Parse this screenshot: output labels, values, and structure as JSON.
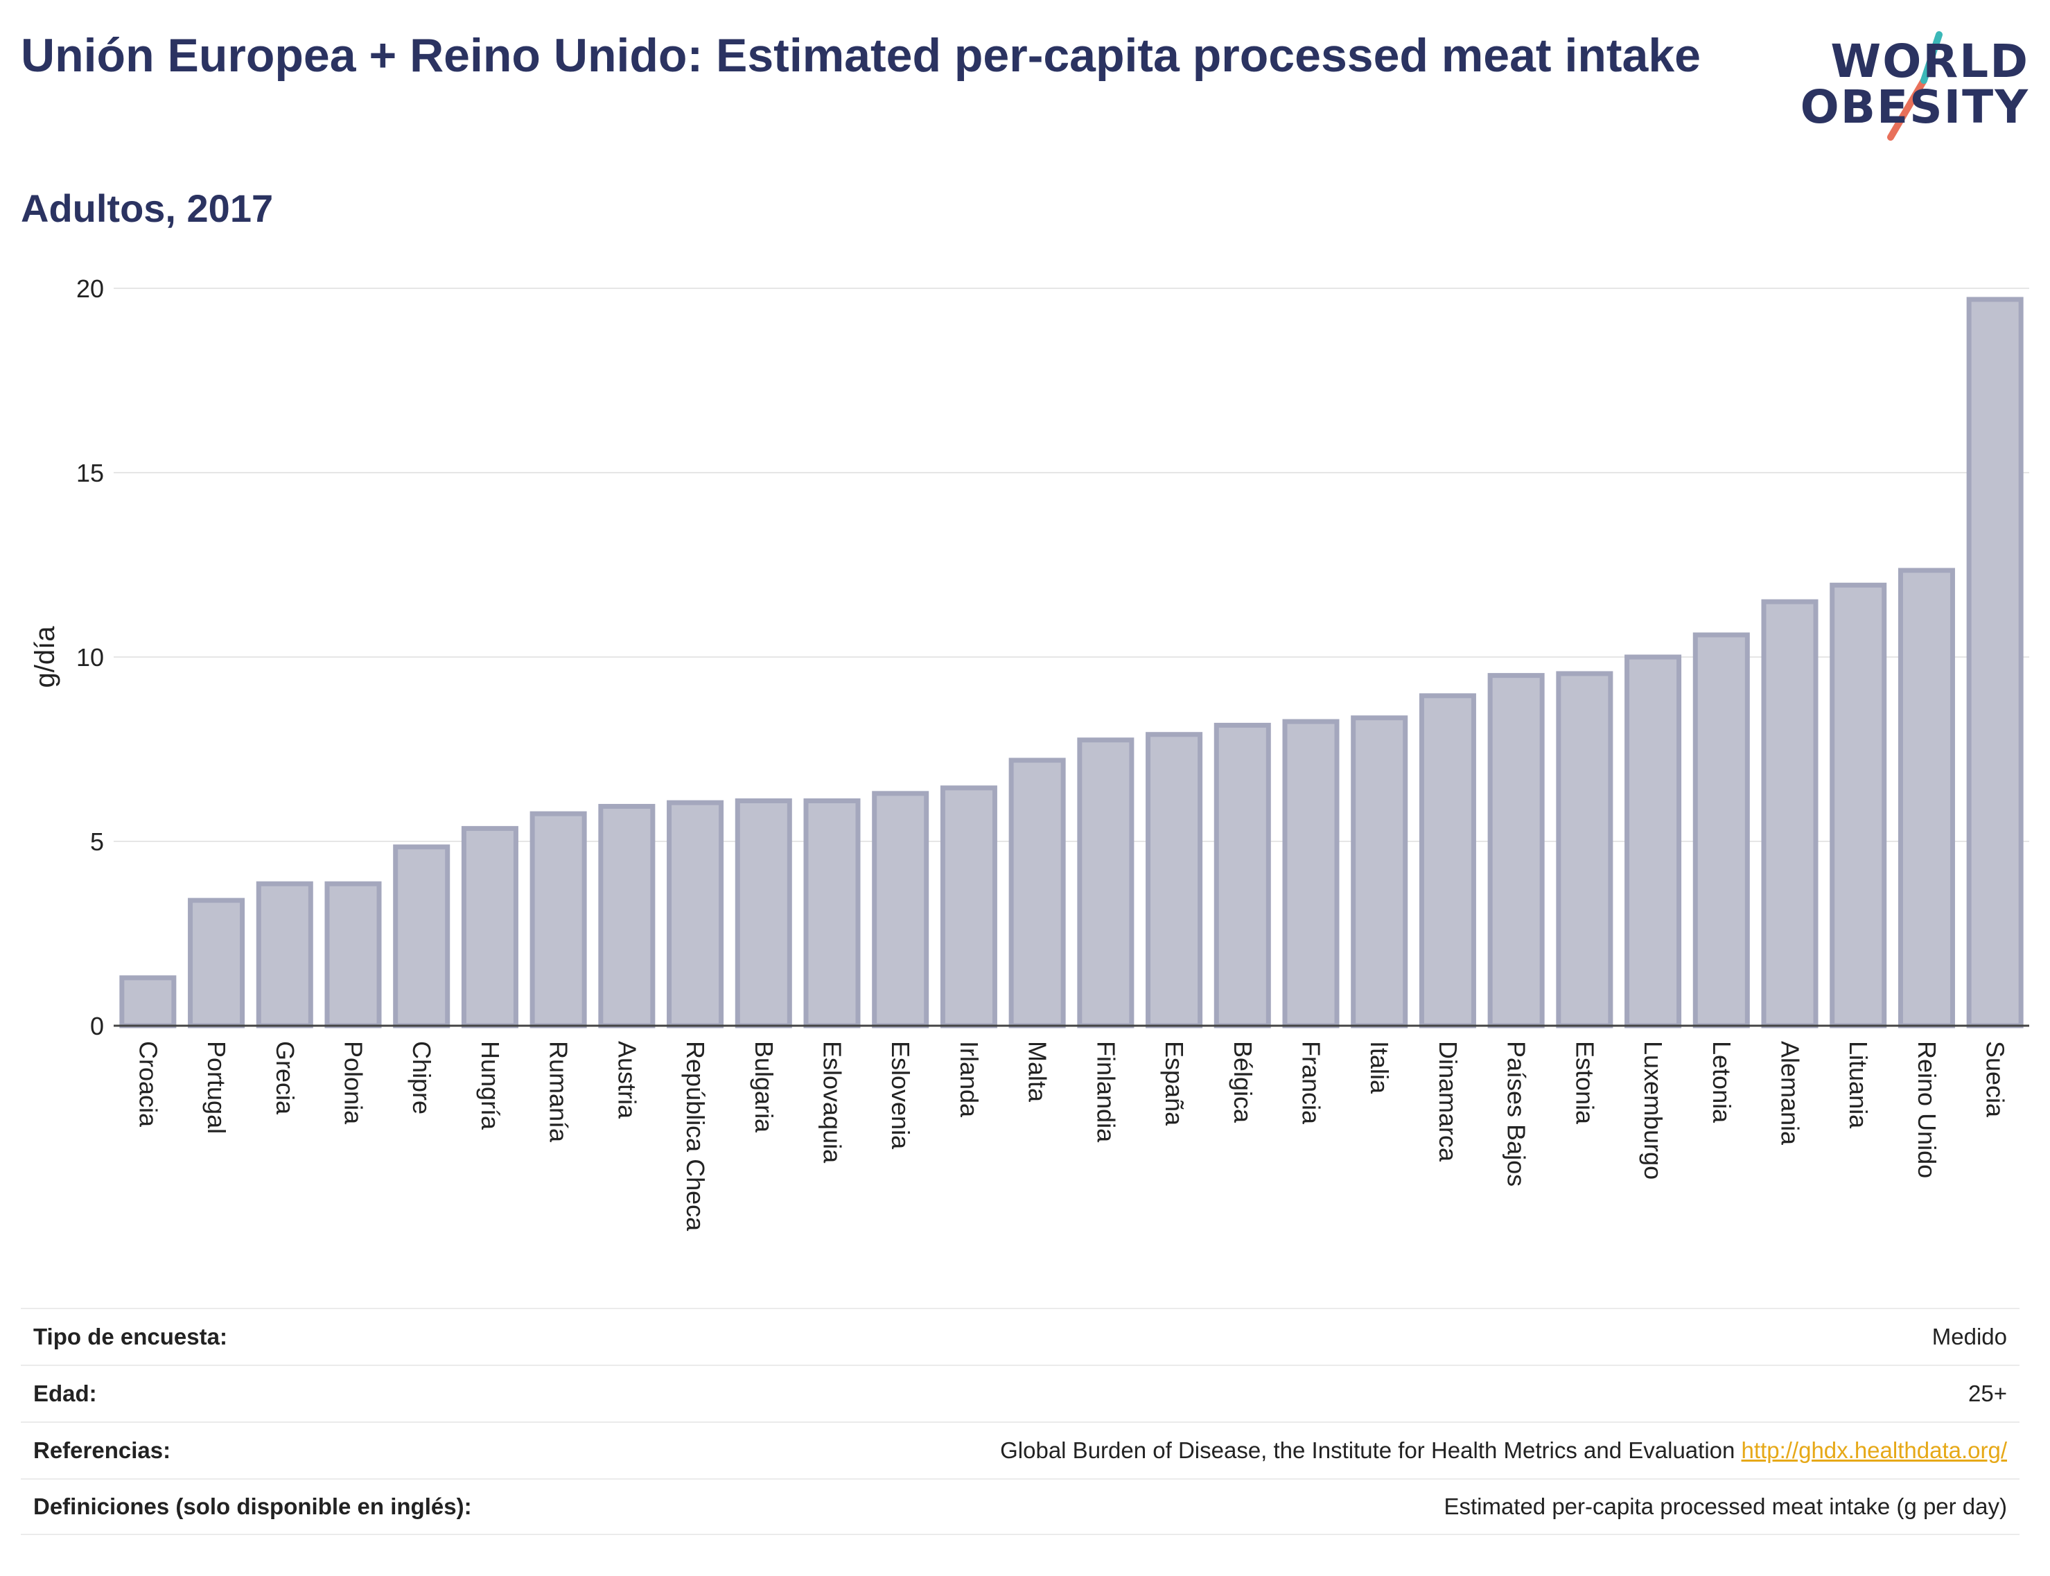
{
  "header": {
    "title": "Unión Europea + Reino Unido: Estimated per-capita processed meat intake",
    "subtitle": "Adultos, 2017"
  },
  "logo": {
    "line1": "WORLD",
    "line2": "OBESITY",
    "accent_teal": "#3bb8b8",
    "accent_coral": "#e8705a"
  },
  "chart_data": {
    "type": "bar",
    "categories": [
      "Croacia",
      "Portugal",
      "Grecia",
      "Polonia",
      "Chipre",
      "Hungría",
      "Rumanía",
      "Austria",
      "República Checa",
      "Bulgaria",
      "Eslovaquia",
      "Eslovenia",
      "Irlanda",
      "Malta",
      "Finlandia",
      "España",
      "Bélgica",
      "Francia",
      "Italia",
      "Dinamarca",
      "Países Bajos",
      "Estonia",
      "Luxemburgo",
      "Letonia",
      "Alemania",
      "Lituania",
      "Reino Unido",
      "Suecia"
    ],
    "values": [
      1.3,
      3.4,
      3.85,
      3.85,
      4.85,
      5.35,
      5.75,
      5.95,
      6.05,
      6.1,
      6.1,
      6.3,
      6.45,
      7.2,
      7.75,
      7.9,
      8.15,
      8.25,
      8.35,
      8.95,
      9.5,
      9.55,
      10.0,
      10.6,
      11.5,
      11.95,
      12.35,
      19.7
    ],
    "ylabel": "g/día",
    "ylim": [
      0,
      20
    ],
    "yticks": [
      0,
      5,
      10,
      15,
      20
    ],
    "grid": true,
    "bar_fill": "#bfc1cf",
    "bar_stroke": "#a4a7bd"
  },
  "info": [
    {
      "label": "Tipo de encuesta:",
      "value": "Medido"
    },
    {
      "label": "Edad:",
      "value": "25+"
    },
    {
      "label": "Referencias:",
      "value": "Global Burden of Disease, the Institute for Health Metrics and Evaluation",
      "link": "http://ghdx.healthdata.org/"
    },
    {
      "label": "Definiciones (solo disponible en inglés):",
      "value": "Estimated per-capita processed meat intake (g per day)"
    }
  ]
}
